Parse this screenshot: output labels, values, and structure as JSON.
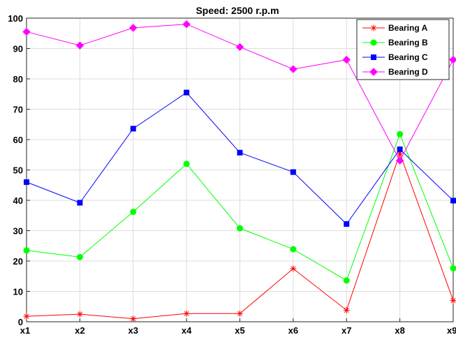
{
  "chart_data": {
    "type": "line",
    "title": "Speed: 2500 r.p.m",
    "xlabel": "",
    "ylabel": "",
    "categories": [
      "x1",
      "x2",
      "x3",
      "x4",
      "x5",
      "x6",
      "x7",
      "x8",
      "x9"
    ],
    "ylim": [
      0,
      100
    ],
    "yticks": [
      "0",
      "10",
      "20",
      "30",
      "40",
      "50",
      "60",
      "70",
      "80",
      "90",
      "100"
    ],
    "grid": true,
    "legend_position": "top-right",
    "series": [
      {
        "name": "Bearing A",
        "color": "#ff0000",
        "marker": "asterisk",
        "values": [
          1.8,
          2.5,
          1.0,
          2.7,
          2.7,
          17.5,
          3.8,
          55.5,
          7.0
        ]
      },
      {
        "name": "Bearing B",
        "color": "#00ff00",
        "marker": "circle",
        "values": [
          23.5,
          21.3,
          36.2,
          52.0,
          30.8,
          23.9,
          13.6,
          61.8,
          17.6
        ]
      },
      {
        "name": "Bearing C",
        "color": "#0000ff",
        "marker": "square",
        "values": [
          46.0,
          39.2,
          63.6,
          75.5,
          55.7,
          49.3,
          32.2,
          56.8,
          39.9
        ]
      },
      {
        "name": "Bearing D",
        "color": "#ff00ff",
        "marker": "diamond",
        "values": [
          95.5,
          91.0,
          96.8,
          98.0,
          90.5,
          83.2,
          86.3,
          53.1,
          86.3
        ]
      }
    ]
  }
}
